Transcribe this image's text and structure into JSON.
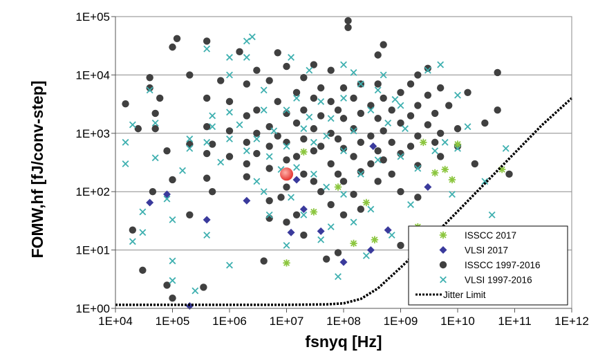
{
  "chart_data": {
    "type": "scatter",
    "xlabel": "fsnyq [Hz]",
    "ylabel": "FOMW,hf [fJ/conv-step]",
    "xscale": "log",
    "yscale": "log",
    "xlim": [
      10000,
      1000000000000
    ],
    "ylim": [
      1,
      100000
    ],
    "x_ticks": [
      "1E+04",
      "1E+05",
      "1E+06",
      "1E+07",
      "1E+08",
      "1E+09",
      "1E+10",
      "1E+11",
      "1E+12"
    ],
    "y_ticks": [
      "1E+00",
      "1E+01",
      "1E+02",
      "1E+03",
      "1E+04",
      "1E+05"
    ],
    "grid": "horizontal",
    "legend_position": "bottom-right",
    "series": [
      {
        "name": "ISSCC 2017",
        "marker": "asterisk",
        "color": "#8cc63f",
        "points": [
          [
            10000000,
            6
          ],
          [
            20000000,
            480
          ],
          [
            30000000,
            45
          ],
          [
            80000000,
            120
          ],
          [
            150000000,
            13
          ],
          [
            250000000,
            65
          ],
          [
            350000000,
            15
          ],
          [
            2000000000,
            25
          ],
          [
            2500000000,
            700
          ],
          [
            4000000000,
            210
          ],
          [
            6000000000,
            240
          ],
          [
            8000000000,
            160
          ],
          [
            10000000000,
            650
          ],
          [
            60000000000,
            240
          ]
        ]
      },
      {
        "name": "VLSI 2017",
        "marker": "diamond",
        "color": "#3a3a9c",
        "points": [
          [
            40000,
            65
          ],
          [
            80000,
            90
          ],
          [
            200000,
            1.1
          ],
          [
            400000,
            33
          ],
          [
            2000000,
            70
          ],
          [
            12000000,
            20
          ],
          [
            15000000,
            160
          ],
          [
            20000000,
            50
          ],
          [
            40000000,
            21
          ],
          [
            100000000,
            6.2
          ],
          [
            300000000,
            10
          ],
          [
            330000000,
            600
          ],
          [
            600000000,
            22
          ],
          [
            3000000000,
            120
          ]
        ]
      },
      {
        "name": "ISSCC 1997-2016",
        "marker": "circle",
        "color": "#404040",
        "points": [
          [
            15000,
            3200
          ],
          [
            20000,
            22
          ],
          [
            25000,
            1200
          ],
          [
            30000,
            4.5
          ],
          [
            40000,
            9000
          ],
          [
            40000,
            6000
          ],
          [
            45000,
            100
          ],
          [
            50000,
            2200
          ],
          [
            50000,
            1200
          ],
          [
            60000,
            4000
          ],
          [
            80000,
            500
          ],
          [
            80000,
            2.5
          ],
          [
            100000,
            30000
          ],
          [
            100000,
            160
          ],
          [
            100000,
            1.5
          ],
          [
            120000,
            42000
          ],
          [
            200000,
            10000
          ],
          [
            200000,
            650
          ],
          [
            200000,
            40
          ],
          [
            350000,
            2.3
          ],
          [
            400000,
            38000
          ],
          [
            400000,
            4000
          ],
          [
            400000,
            1300
          ],
          [
            400000,
            450
          ],
          [
            400000,
            170
          ],
          [
            500000,
            650
          ],
          [
            500000,
            100
          ],
          [
            700000,
            8000
          ],
          [
            1000000,
            3500
          ],
          [
            1000000,
            1100
          ],
          [
            1000000,
            400
          ],
          [
            1500000,
            25000
          ],
          [
            2000000,
            7000
          ],
          [
            2000000,
            2000
          ],
          [
            2000000,
            700
          ],
          [
            2000000,
            300
          ],
          [
            2000000,
            180
          ],
          [
            3000000,
            12000
          ],
          [
            3000000,
            2500
          ],
          [
            3000000,
            1000
          ],
          [
            3000000,
            450
          ],
          [
            4000000,
            6.5
          ],
          [
            5000000,
            8000
          ],
          [
            5000000,
            1300
          ],
          [
            5000000,
            600
          ],
          [
            5000000,
            250
          ],
          [
            5000000,
            70
          ],
          [
            5000000,
            35
          ],
          [
            7000000,
            24000
          ],
          [
            7000000,
            3500
          ],
          [
            7000000,
            900
          ],
          [
            8000000,
            80
          ],
          [
            10000000,
            14000
          ],
          [
            10000000,
            2200
          ],
          [
            10000000,
            700
          ],
          [
            10000000,
            350
          ],
          [
            10000000,
            120
          ],
          [
            10000000,
            30
          ],
          [
            15000000,
            5000
          ],
          [
            15000000,
            1500
          ],
          [
            15000000,
            400
          ],
          [
            15000000,
            40
          ],
          [
            20000000,
            9000
          ],
          [
            20000000,
            2500
          ],
          [
            20000000,
            800
          ],
          [
            20000000,
            200
          ],
          [
            20000000,
            18
          ],
          [
            30000000,
            15000
          ],
          [
            30000000,
            4000
          ],
          [
            30000000,
            1200
          ],
          [
            30000000,
            500
          ],
          [
            30000000,
            150
          ],
          [
            40000000,
            6000
          ],
          [
            40000000,
            2000
          ],
          [
            40000000,
            600
          ],
          [
            40000000,
            100
          ],
          [
            50000000,
            7
          ],
          [
            60000000,
            12000
          ],
          [
            60000000,
            3500
          ],
          [
            60000000,
            1000
          ],
          [
            60000000,
            300
          ],
          [
            60000000,
            60
          ],
          [
            80000000,
            2500
          ],
          [
            80000000,
            800
          ],
          [
            80000000,
            200
          ],
          [
            80000000,
            9
          ],
          [
            100000000,
            6000
          ],
          [
            100000000,
            1800
          ],
          [
            100000000,
            550
          ],
          [
            100000000,
            150
          ],
          [
            100000000,
            40
          ],
          [
            120000000,
            85000
          ],
          [
            120000000,
            65000
          ],
          [
            150000000,
            4000
          ],
          [
            150000000,
            1200
          ],
          [
            150000000,
            400
          ],
          [
            150000000,
            90
          ],
          [
            200000000,
            7000
          ],
          [
            200000000,
            2200
          ],
          [
            200000000,
            700
          ],
          [
            200000000,
            220
          ],
          [
            200000000,
            50
          ],
          [
            300000000,
            3000
          ],
          [
            300000000,
            900
          ],
          [
            300000000,
            300
          ],
          [
            400000000,
            22000
          ],
          [
            400000000,
            7000
          ],
          [
            400000000,
            1800
          ],
          [
            400000000,
            500
          ],
          [
            400000000,
            150
          ],
          [
            500000000,
            33000
          ],
          [
            500000000,
            4000
          ],
          [
            500000000,
            1100
          ],
          [
            500000000,
            350
          ],
          [
            700000000,
            2500
          ],
          [
            700000000,
            700
          ],
          [
            700000000,
            200
          ],
          [
            1000000000,
            5000
          ],
          [
            1000000000,
            1500
          ],
          [
            1000000000,
            450
          ],
          [
            1000000000,
            100
          ],
          [
            1000000000,
            12
          ],
          [
            1500000000,
            7000
          ],
          [
            1500000000,
            2000
          ],
          [
            1500000000,
            600
          ],
          [
            2000000000,
            10000
          ],
          [
            2000000000,
            3000
          ],
          [
            2000000000,
            900
          ],
          [
            2000000000,
            280
          ],
          [
            2000000000,
            80
          ],
          [
            3000000000,
            13000
          ],
          [
            3000000000,
            4500
          ],
          [
            3000000000,
            1400
          ],
          [
            4000000000,
            2200
          ],
          [
            4000000000,
            700
          ],
          [
            5000000000,
            6000
          ],
          [
            5000000000,
            1000
          ],
          [
            5000000000,
            400
          ],
          [
            7000000000,
            3000
          ],
          [
            10000000000,
            1200
          ],
          [
            10000000000,
            600
          ],
          [
            15000000000,
            5000
          ],
          [
            20000000000,
            300
          ],
          [
            30000000000,
            1500
          ],
          [
            50000000000,
            2500
          ],
          [
            50000000000,
            11000
          ],
          [
            80000000000,
            200
          ]
        ]
      },
      {
        "name": "VLSI 1997-2016",
        "marker": "x",
        "color": "#3fb0b0",
        "points": [
          [
            15000,
            700
          ],
          [
            15000,
            300
          ],
          [
            20000,
            14
          ],
          [
            20000,
            1400
          ],
          [
            30000,
            45
          ],
          [
            30000,
            20
          ],
          [
            40000,
            5500
          ],
          [
            50000,
            380
          ],
          [
            50000,
            1500
          ],
          [
            80000,
            75
          ],
          [
            100000,
            6.5
          ],
          [
            100000,
            3
          ],
          [
            100000,
            33
          ],
          [
            150000,
            230
          ],
          [
            200000,
            800
          ],
          [
            200000,
            550
          ],
          [
            250000,
            2
          ],
          [
            400000,
            28000
          ],
          [
            400000,
            700
          ],
          [
            400000,
            18
          ],
          [
            500000,
            2000
          ],
          [
            500000,
            1300
          ],
          [
            700000,
            320
          ],
          [
            1000000,
            20000
          ],
          [
            1000000,
            10000
          ],
          [
            1000000,
            2300
          ],
          [
            1000000,
            800
          ],
          [
            1000000,
            5.5
          ],
          [
            1500000,
            1400
          ],
          [
            2000000,
            38000
          ],
          [
            2000000,
            20000
          ],
          [
            2000000,
            500
          ],
          [
            2500000,
            45000
          ],
          [
            3000000,
            800
          ],
          [
            3000000,
            150
          ],
          [
            4000000,
            5500
          ],
          [
            4000000,
            2500
          ],
          [
            4000000,
            100
          ],
          [
            5000000,
            400
          ],
          [
            5000000,
            40
          ],
          [
            6000000,
            1100
          ],
          [
            8000000,
            240
          ],
          [
            10000000,
            12
          ],
          [
            10000000,
            2500
          ],
          [
            10000000,
            600
          ],
          [
            12000000,
            20000
          ],
          [
            12000000,
            80
          ],
          [
            15000000,
            4000
          ],
          [
            15000000,
            260
          ],
          [
            20000000,
            1200
          ],
          [
            20000000,
            40
          ],
          [
            25000000,
            12000
          ],
          [
            25000000,
            1900
          ],
          [
            30000000,
            700
          ],
          [
            30000000,
            200
          ],
          [
            40000000,
            3500
          ],
          [
            40000000,
            15
          ],
          [
            50000000,
            900
          ],
          [
            50000000,
            120
          ],
          [
            60000000,
            1800
          ],
          [
            60000000,
            25
          ],
          [
            80000000,
            3.5
          ],
          [
            100000000,
            15000
          ],
          [
            100000000,
            4000
          ],
          [
            100000000,
            500
          ],
          [
            100000000,
            90
          ],
          [
            150000000,
            11000
          ],
          [
            150000000,
            1100
          ],
          [
            150000000,
            30
          ],
          [
            200000000,
            7000
          ],
          [
            200000000,
            200
          ],
          [
            250000000,
            8
          ],
          [
            300000000,
            2500
          ],
          [
            300000000,
            50
          ],
          [
            400000000,
            5500
          ],
          [
            400000000,
            350
          ],
          [
            500000000,
            10000
          ],
          [
            600000000,
            1500
          ],
          [
            700000000,
            18
          ],
          [
            800000000,
            3800
          ],
          [
            1000000000,
            3000
          ],
          [
            1000000000,
            400
          ],
          [
            1200000000,
            1200
          ],
          [
            1500000000,
            60
          ],
          [
            2000000000,
            250
          ],
          [
            3000000000,
            12000
          ],
          [
            4000000000,
            500
          ],
          [
            5000000000,
            15000
          ],
          [
            6000000000,
            700
          ],
          [
            8000000000,
            90
          ],
          [
            10000000000,
            4500
          ],
          [
            10000000000,
            550
          ],
          [
            15000000000,
            1300
          ],
          [
            30000000000,
            150
          ],
          [
            40000000000,
            40
          ],
          [
            70000000000,
            550
          ]
        ]
      },
      {
        "name": "Jitter Limit",
        "marker": "dotted-line",
        "color": "#000000",
        "points": [
          [
            10000,
            1.15
          ],
          [
            10000000,
            1.15
          ],
          [
            50000000,
            1.17
          ],
          [
            100000000,
            1.22
          ],
          [
            200000000,
            1.45
          ],
          [
            400000000,
            2.2
          ],
          [
            1000000000,
            5
          ],
          [
            3000000000,
            14
          ],
          [
            10000000000,
            46
          ],
          [
            30000000000,
            138
          ],
          [
            100000000000,
            460
          ],
          [
            300000000000,
            1380
          ],
          [
            1000000000000,
            4000
          ]
        ]
      }
    ],
    "highlight": {
      "color": "#e53935",
      "x": 10000000,
      "y": 200
    }
  }
}
